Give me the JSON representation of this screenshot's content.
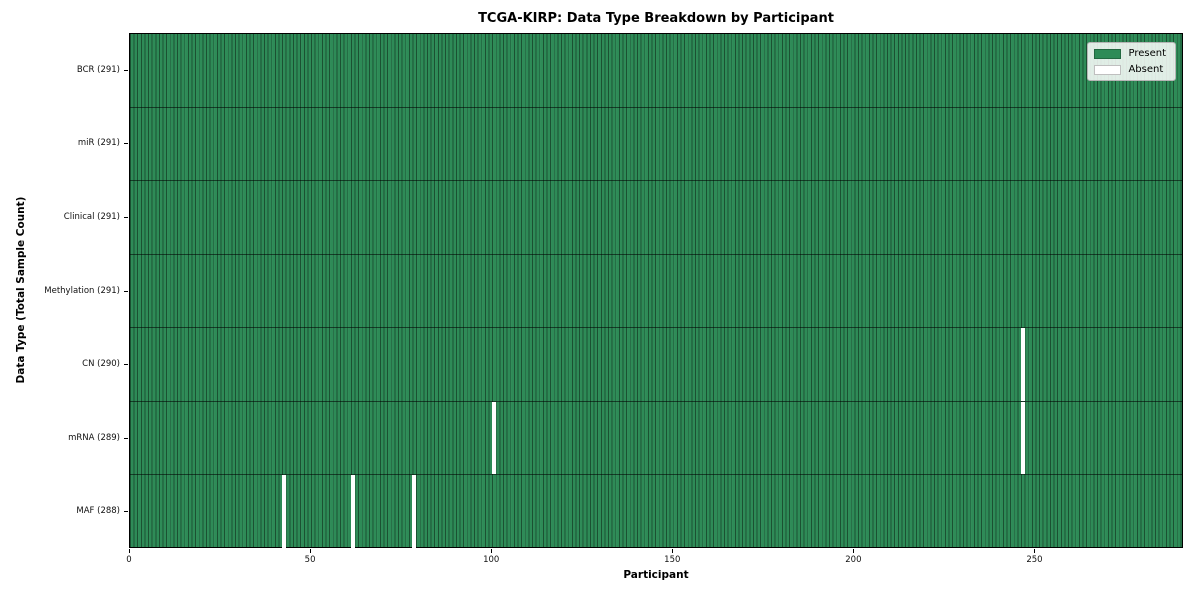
{
  "figure": {
    "title": "TCGA-KIRP: Data Type Breakdown by Participant",
    "xlabel": "Participant",
    "ylabel": "Data Type (Total Sample Count)"
  },
  "legend": {
    "items": [
      {
        "name": "present",
        "label": "Present",
        "color": "#2e8b57"
      },
      {
        "name": "absent",
        "label": "Absent",
        "color": "#ffffff"
      }
    ]
  },
  "chart_data": {
    "type": "heatmap",
    "title": "TCGA-KIRP: Data Type Breakdown by Participant",
    "xlabel": "Participant",
    "ylabel": "Data Type (Total Sample Count)",
    "x_range": [
      0,
      291
    ],
    "x_ticks": [
      0,
      50,
      100,
      150,
      200,
      250
    ],
    "n_participants": 291,
    "rows": [
      {
        "label": "BCR (291)",
        "data_type": "BCR",
        "present_count": 291,
        "absent_participants": []
      },
      {
        "label": "miR (291)",
        "data_type": "miR",
        "present_count": 291,
        "absent_participants": []
      },
      {
        "label": "Clinical (291)",
        "data_type": "Clinical",
        "present_count": 291,
        "absent_participants": []
      },
      {
        "label": "Methylation (291)",
        "data_type": "Methylation",
        "present_count": 291,
        "absent_participants": []
      },
      {
        "label": "CN (290)",
        "data_type": "CN",
        "present_count": 290,
        "absent_participants": [
          246
        ]
      },
      {
        "label": "mRNA (289)",
        "data_type": "mRNA",
        "present_count": 289,
        "absent_participants": [
          100,
          246
        ]
      },
      {
        "label": "MAF (288)",
        "data_type": "MAF",
        "present_count": 288,
        "absent_participants": [
          42,
          61,
          78
        ]
      }
    ],
    "colors": {
      "present": "#2e8b57",
      "absent": "#ffffff"
    },
    "legend": [
      "Present",
      "Absent"
    ],
    "legend_position": "upper right",
    "grid": false
  }
}
